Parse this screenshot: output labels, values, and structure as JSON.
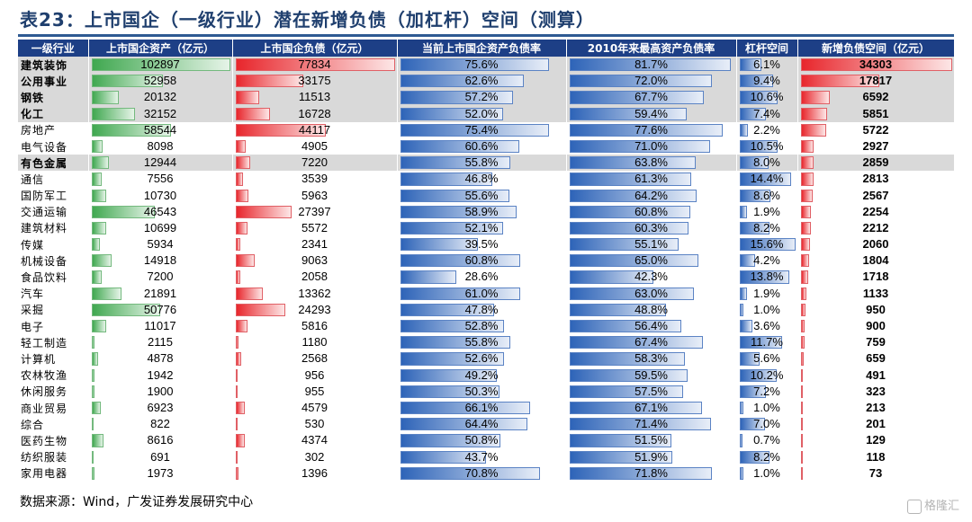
{
  "title": "表23：上市国企（一级行业）潜在新增负债（加杠杆）空间（测算）",
  "headers": [
    "一级行业",
    "上市国企资产（亿元）",
    "上市国企负债（亿元）",
    "当前上市国企资产负债率",
    "2010年来最高资产负债率",
    "杠杆空间",
    "新增负债空间（亿元）"
  ],
  "rows": [
    {
      "industry": "建筑装饰",
      "assets": "102897",
      "liab": "77834",
      "cur_ratio": "75.6%",
      "max_ratio": "81.7%",
      "space": "6.1%",
      "new_debt": "34303",
      "highlight": true
    },
    {
      "industry": "公用事业",
      "assets": "52958",
      "liab": "33175",
      "cur_ratio": "62.6%",
      "max_ratio": "72.0%",
      "space": "9.4%",
      "new_debt": "17817",
      "highlight": true
    },
    {
      "industry": "钢铁",
      "assets": "20132",
      "liab": "11513",
      "cur_ratio": "57.2%",
      "max_ratio": "67.7%",
      "space": "10.6%",
      "new_debt": "6592",
      "highlight": true
    },
    {
      "industry": "化工",
      "assets": "32152",
      "liab": "16728",
      "cur_ratio": "52.0%",
      "max_ratio": "59.4%",
      "space": "7.4%",
      "new_debt": "5851",
      "highlight": true
    },
    {
      "industry": "房地产",
      "assets": "58544",
      "liab": "44117",
      "cur_ratio": "75.4%",
      "max_ratio": "77.6%",
      "space": "2.2%",
      "new_debt": "5722",
      "highlight": false
    },
    {
      "industry": "电气设备",
      "assets": "8098",
      "liab": "4905",
      "cur_ratio": "60.6%",
      "max_ratio": "71.0%",
      "space": "10.5%",
      "new_debt": "2927",
      "highlight": false
    },
    {
      "industry": "有色金属",
      "assets": "12944",
      "liab": "7220",
      "cur_ratio": "55.8%",
      "max_ratio": "63.8%",
      "space": "8.0%",
      "new_debt": "2859",
      "highlight": true
    },
    {
      "industry": "通信",
      "assets": "7556",
      "liab": "3539",
      "cur_ratio": "46.8%",
      "max_ratio": "61.3%",
      "space": "14.4%",
      "new_debt": "2813",
      "highlight": false
    },
    {
      "industry": "国防军工",
      "assets": "10730",
      "liab": "5963",
      "cur_ratio": "55.6%",
      "max_ratio": "64.2%",
      "space": "8.6%",
      "new_debt": "2567",
      "highlight": false
    },
    {
      "industry": "交通运输",
      "assets": "46543",
      "liab": "27397",
      "cur_ratio": "58.9%",
      "max_ratio": "60.8%",
      "space": "1.9%",
      "new_debt": "2254",
      "highlight": false
    },
    {
      "industry": "建筑材料",
      "assets": "10699",
      "liab": "5572",
      "cur_ratio": "52.1%",
      "max_ratio": "60.3%",
      "space": "8.2%",
      "new_debt": "2212",
      "highlight": false
    },
    {
      "industry": "传媒",
      "assets": "5934",
      "liab": "2341",
      "cur_ratio": "39.5%",
      "max_ratio": "55.1%",
      "space": "15.6%",
      "new_debt": "2060",
      "highlight": false
    },
    {
      "industry": "机械设备",
      "assets": "14918",
      "liab": "9063",
      "cur_ratio": "60.8%",
      "max_ratio": "65.0%",
      "space": "4.2%",
      "new_debt": "1804",
      "highlight": false
    },
    {
      "industry": "食品饮料",
      "assets": "7200",
      "liab": "2058",
      "cur_ratio": "28.6%",
      "max_ratio": "42.3%",
      "space": "13.8%",
      "new_debt": "1718",
      "highlight": false
    },
    {
      "industry": "汽车",
      "assets": "21891",
      "liab": "13362",
      "cur_ratio": "61.0%",
      "max_ratio": "63.0%",
      "space": "1.9%",
      "new_debt": "1133",
      "highlight": false
    },
    {
      "industry": "采掘",
      "assets": "50776",
      "liab": "24293",
      "cur_ratio": "47.8%",
      "max_ratio": "48.8%",
      "space": "1.0%",
      "new_debt": "950",
      "highlight": false
    },
    {
      "industry": "电子",
      "assets": "11017",
      "liab": "5816",
      "cur_ratio": "52.8%",
      "max_ratio": "56.4%",
      "space": "3.6%",
      "new_debt": "900",
      "highlight": false
    },
    {
      "industry": "轻工制造",
      "assets": "2115",
      "liab": "1180",
      "cur_ratio": "55.8%",
      "max_ratio": "67.4%",
      "space": "11.7%",
      "new_debt": "759",
      "highlight": false
    },
    {
      "industry": "计算机",
      "assets": "4878",
      "liab": "2568",
      "cur_ratio": "52.6%",
      "max_ratio": "58.3%",
      "space": "5.6%",
      "new_debt": "659",
      "highlight": false
    },
    {
      "industry": "农林牧渔",
      "assets": "1942",
      "liab": "956",
      "cur_ratio": "49.2%",
      "max_ratio": "59.5%",
      "space": "10.2%",
      "new_debt": "491",
      "highlight": false
    },
    {
      "industry": "休闲服务",
      "assets": "1900",
      "liab": "955",
      "cur_ratio": "50.3%",
      "max_ratio": "57.5%",
      "space": "7.2%",
      "new_debt": "323",
      "highlight": false
    },
    {
      "industry": "商业贸易",
      "assets": "6923",
      "liab": "4579",
      "cur_ratio": "66.1%",
      "max_ratio": "67.1%",
      "space": "1.0%",
      "new_debt": "213",
      "highlight": false
    },
    {
      "industry": "综合",
      "assets": "822",
      "liab": "530",
      "cur_ratio": "64.4%",
      "max_ratio": "71.4%",
      "space": "7.0%",
      "new_debt": "201",
      "highlight": false
    },
    {
      "industry": "医药生物",
      "assets": "8616",
      "liab": "4374",
      "cur_ratio": "50.8%",
      "max_ratio": "51.5%",
      "space": "0.7%",
      "new_debt": "129",
      "highlight": false
    },
    {
      "industry": "纺织服装",
      "assets": "691",
      "liab": "302",
      "cur_ratio": "43.7%",
      "max_ratio": "51.9%",
      "space": "8.2%",
      "new_debt": "118",
      "highlight": false
    },
    {
      "industry": "家用电器",
      "assets": "1973",
      "liab": "1396",
      "cur_ratio": "70.8%",
      "max_ratio": "71.8%",
      "space": "1.0%",
      "new_debt": "73",
      "highlight": false
    }
  ],
  "source": "数据来源：Wind，广发证券发展研究中心",
  "watermark": "格隆汇",
  "colors": {
    "header_bg": "#1d3f86",
    "green": "#40a850",
    "red": "#e8262c",
    "blue": "#2e64b8",
    "highlight_row": "#d9d9d9",
    "title": "#1f3f6e"
  }
}
